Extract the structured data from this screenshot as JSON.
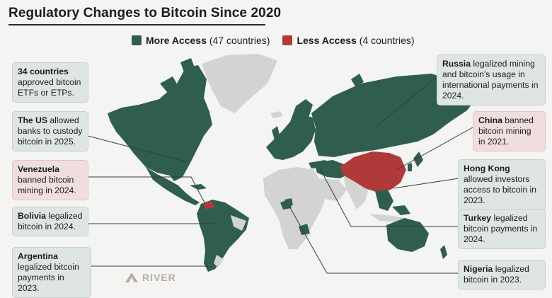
{
  "title": "Regulatory Changes to Bitcoin Since 2020",
  "colors": {
    "more": "#2f5e4f",
    "less": "#b03a3a",
    "neutral": "#d3d3d3",
    "callout_more": "#dfe5e2",
    "callout_less": "#f0dede"
  },
  "legend": {
    "more": {
      "label": "More Access",
      "count": "(47 countries)"
    },
    "less": {
      "label": "Less Access",
      "count": "(4 countries)"
    }
  },
  "callouts": {
    "etfs": {
      "country": "34 countries",
      "text": " approved bitcoin ETFs or ETPs."
    },
    "us": {
      "country": "The US",
      "text": " allowed banks to custody bitcoin in 2025."
    },
    "venezuela": {
      "country": "Venezuela",
      "text": " banned bitcoin mining in 2024."
    },
    "bolivia": {
      "country": "Bolivia",
      "text": " legalized bitcoin in 2024."
    },
    "argentina": {
      "country": "Argentina",
      "text": " legalized bitcoin payments in 2023."
    },
    "russia": {
      "country": "Russia",
      "text": " legalized mining and bitcoin's usage in international payments in 2024."
    },
    "china": {
      "country": "China",
      "text": " banned bitcoin mining in 2021."
    },
    "hongkong": {
      "country": "Hong Kong",
      "text": " allowed investors access to bitcoin in 2023."
    },
    "turkey": {
      "country": "Turkey",
      "text": " legalized bitcoin payments in 2024."
    },
    "nigeria": {
      "country": "Nigeria",
      "text": " legalized bitcoin in 2023."
    }
  },
  "logo": {
    "text": "RIVER",
    "icon": "river-logo-icon"
  }
}
